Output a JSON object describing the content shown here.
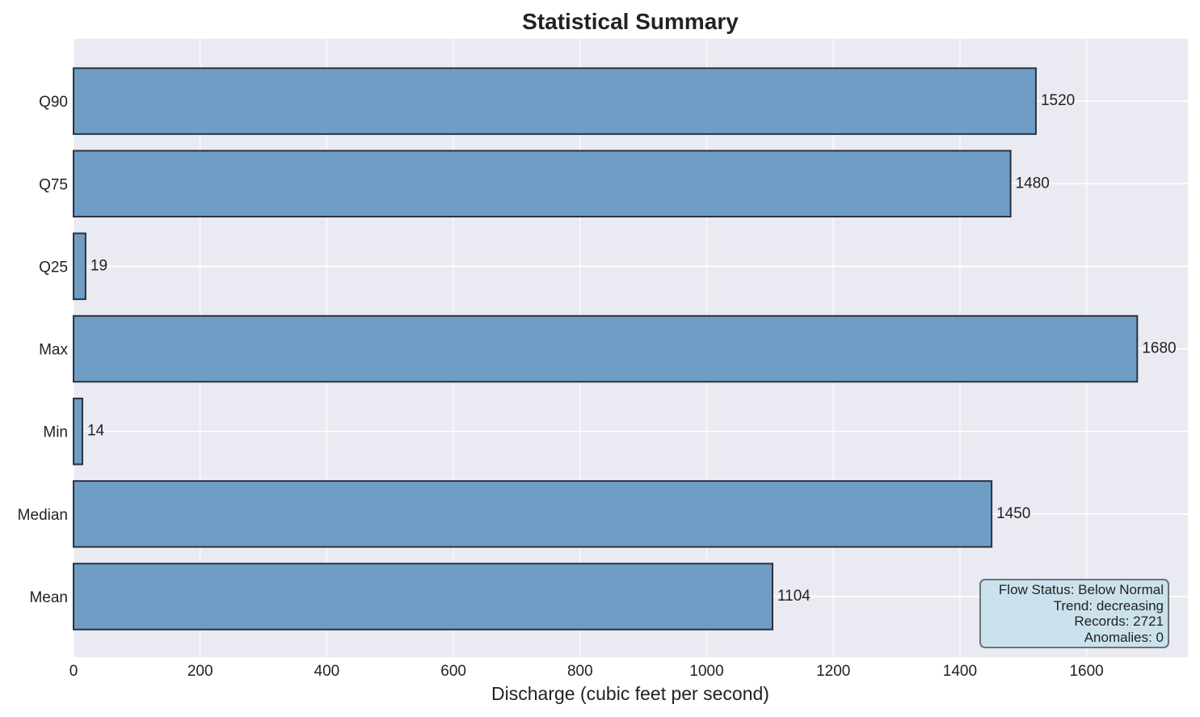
{
  "chart_data": {
    "type": "bar",
    "orientation": "horizontal",
    "title": "Statistical Summary",
    "xlabel": "Discharge (cubic feet per second)",
    "ylabel": "",
    "categories": [
      "Mean",
      "Median",
      "Min",
      "Max",
      "Q25",
      "Q75",
      "Q90"
    ],
    "values": [
      1104,
      1450,
      14,
      1680,
      19,
      1480,
      1520
    ],
    "value_labels": [
      "1104",
      "1450",
      "14",
      "1680",
      "19",
      "1480",
      "1520"
    ],
    "xlim": [
      0,
      1760
    ],
    "xticks": [
      0,
      200,
      400,
      600,
      800,
      1000,
      1200,
      1400,
      1600
    ],
    "grid": true,
    "bar_color": "#6f9dc6",
    "bar_edge_color": "#2a3340",
    "plot_background": "#eaeaf2"
  },
  "info_box": {
    "placement": "bottom-right",
    "lines": [
      "Flow Status: Below Normal",
      "Trend: decreasing",
      "Records: 2721",
      "Anomalies: 0"
    ]
  }
}
